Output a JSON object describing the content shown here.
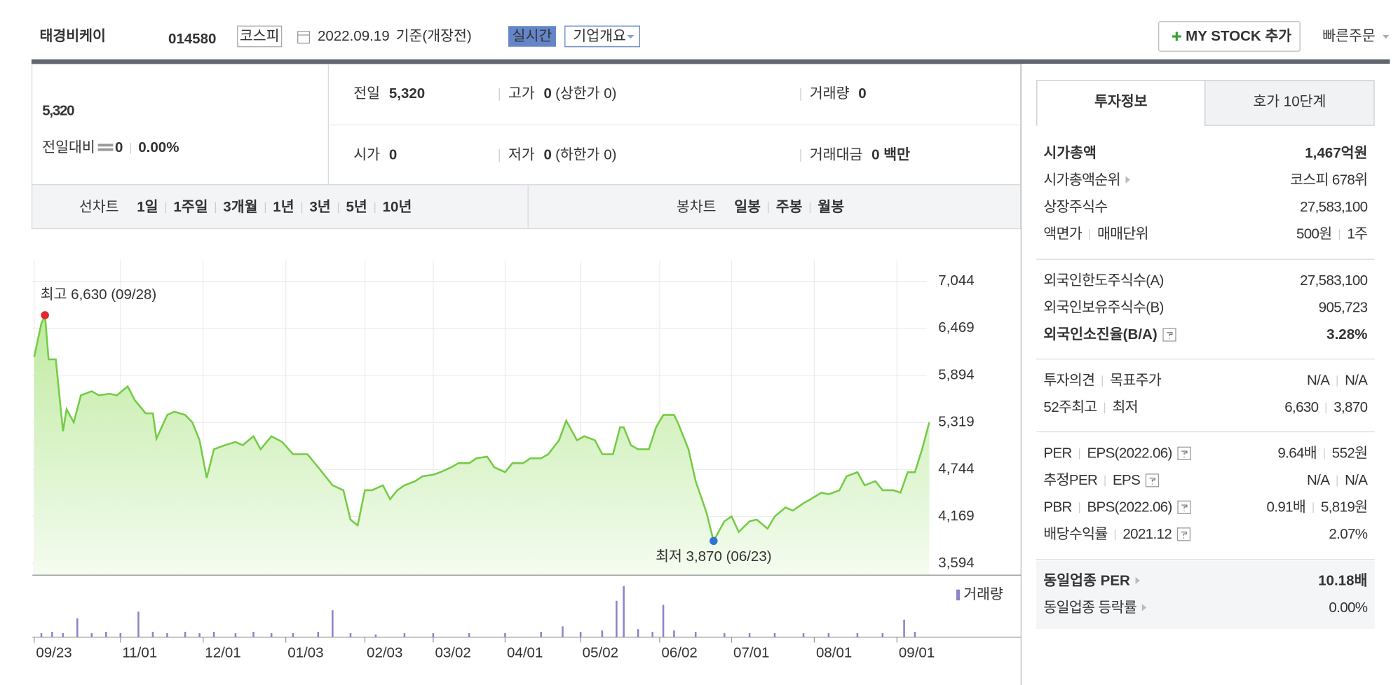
{
  "header": {
    "name": "태경비케이",
    "code": "014580",
    "market": "코스피",
    "date": "2022.09.19",
    "basis": "기준(개장전)",
    "realtime": "실시간",
    "overview": "기업개요",
    "mystock": "MY STOCK 추가",
    "quick_order": "빠른주문"
  },
  "price": {
    "current": "5,320",
    "change_label": "전일대비",
    "change": "0",
    "rate": "0.00%"
  },
  "summary": [
    {
      "label": "전일",
      "value": "5,320"
    },
    {
      "label": "고가",
      "value": "0",
      "note": "(상한가 0)"
    },
    {
      "label": "거래량",
      "value": "0"
    },
    {
      "label": "시가",
      "value": "0"
    },
    {
      "label": "저가",
      "value": "0",
      "note": "(하한가 0)"
    },
    {
      "label": "거래대금",
      "value": "0 백만"
    }
  ],
  "line_tabs": {
    "label": "선차트",
    "items": [
      "1일",
      "1주일",
      "3개월",
      "1년",
      "3년",
      "5년",
      "10년"
    ],
    "selected": 3
  },
  "candle_tabs": {
    "label": "봉차트",
    "items": [
      "일봉",
      "주봉",
      "월봉"
    ]
  },
  "chart_data": {
    "type": "line",
    "color": "#74cc45",
    "x": [
      0,
      2,
      3,
      4,
      6,
      8,
      9,
      11,
      13,
      16,
      18,
      21,
      23,
      26,
      28,
      31,
      33,
      34,
      37,
      39,
      42,
      44,
      46,
      48,
      50,
      53,
      56,
      58,
      61,
      63,
      66,
      69,
      72,
      76,
      79,
      83,
      86,
      88,
      90,
      92,
      94,
      97,
      99,
      101,
      103,
      106,
      108,
      111,
      113,
      116,
      118,
      121,
      123,
      126,
      128,
      131,
      133,
      136,
      138,
      141,
      143,
      146,
      148,
      151,
      153,
      156,
      158,
      161,
      163,
      164,
      166,
      168,
      171,
      173,
      175,
      178,
      179,
      182,
      184,
      187,
      189,
      192,
      194,
      196,
      199,
      201,
      204,
      206,
      209,
      211,
      214,
      216,
      219,
      221,
      224,
      226,
      229,
      231,
      234,
      236,
      239,
      241,
      243,
      245,
      247,
      249
    ],
    "values": [
      6120,
      6530,
      6630,
      6090,
      6090,
      5210,
      5480,
      5320,
      5650,
      5700,
      5650,
      5670,
      5650,
      5760,
      5590,
      5430,
      5430,
      5120,
      5410,
      5450,
      5410,
      5320,
      5100,
      4640,
      4990,
      5040,
      5080,
      5040,
      5150,
      4990,
      5150,
      5080,
      4930,
      4930,
      4770,
      4550,
      4490,
      4130,
      4060,
      4490,
      4490,
      4550,
      4380,
      4490,
      4550,
      4600,
      4660,
      4680,
      4710,
      4770,
      4820,
      4820,
      4880,
      4900,
      4770,
      4710,
      4820,
      4820,
      4880,
      4880,
      4930,
      5100,
      5340,
      5100,
      5150,
      5100,
      4930,
      4930,
      5260,
      5260,
      5040,
      4990,
      4990,
      5260,
      5410,
      5410,
      5320,
      4990,
      4600,
      4220,
      3870,
      4110,
      4170,
      3980,
      4110,
      4130,
      4020,
      4170,
      4280,
      4240,
      4330,
      4380,
      4460,
      4440,
      4490,
      4660,
      4710,
      4550,
      4600,
      4490,
      4490,
      4460,
      4710,
      4710,
      4990,
      5320
    ],
    "xlim": [
      0,
      249
    ],
    "ylim": [
      3594,
      7044
    ],
    "yticks": [
      {
        "value": 7044,
        "label": "7,044"
      },
      {
        "value": 6469,
        "label": "6,469"
      },
      {
        "value": 5894,
        "label": "5,894"
      },
      {
        "value": 5319,
        "label": "5,319"
      },
      {
        "value": 4744,
        "label": "4,744"
      },
      {
        "value": 4169,
        "label": "4,169"
      },
      {
        "value": 3594,
        "label": "3,594"
      }
    ],
    "xticks": [
      {
        "value": 0,
        "label": "09/23"
      },
      {
        "value": 24,
        "label": "11/01"
      },
      {
        "value": 47,
        "label": "12/01"
      },
      {
        "value": 70,
        "label": "01/03"
      },
      {
        "value": 92,
        "label": "02/03"
      },
      {
        "value": 111,
        "label": "03/02"
      },
      {
        "value": 131,
        "label": "04/01"
      },
      {
        "value": 152,
        "label": "05/02"
      },
      {
        "value": 174,
        "label": "06/02"
      },
      {
        "value": 194,
        "label": "07/01"
      },
      {
        "value": 217,
        "label": "08/01"
      },
      {
        "value": 240,
        "label": "09/01"
      }
    ],
    "grid": true,
    "annotations": [
      {
        "text": "최고 6,630 (09/28)",
        "x": 3,
        "y": 6630,
        "color": "#e3262f",
        "position": "above"
      },
      {
        "text": "최저 3,870 (06/23)",
        "x": 189,
        "y": 3870,
        "color": "#2f74d0",
        "position": "below"
      }
    ],
    "volume": {
      "name": "거래량",
      "color": "#8e84c9",
      "x": [
        2,
        5,
        8,
        12,
        16,
        20,
        24,
        29,
        33,
        37,
        42,
        46,
        50,
        56,
        61,
        66,
        72,
        79,
        83,
        88,
        95,
        103,
        111,
        121,
        131,
        141,
        147,
        152,
        158,
        162,
        164,
        168,
        172,
        175,
        178,
        184,
        192,
        199,
        206,
        214,
        221,
        229,
        236,
        242,
        245
      ],
      "values": [
        3,
        4,
        3,
        14,
        3,
        4,
        3,
        19,
        4,
        3,
        4,
        3,
        4,
        3,
        4,
        3,
        3,
        4,
        20,
        3,
        2,
        3,
        3,
        3,
        3,
        4,
        8,
        4,
        5,
        27,
        38,
        6,
        4,
        24,
        5,
        4,
        3,
        3,
        3,
        3,
        3,
        3,
        3,
        13,
        4
      ]
    }
  },
  "right_panel": {
    "tabs": [
      "투자정보",
      "호가 10단계"
    ],
    "sections": [
      [
        {
          "label": [
            "시가총액"
          ],
          "value": [
            "1,467억원"
          ],
          "bold": true
        },
        {
          "label": [
            "시가총액순위"
          ],
          "value": [
            "코스피 678위"
          ],
          "arrow": true
        },
        {
          "label": [
            "상장주식수"
          ],
          "value": [
            "27,583,100"
          ]
        },
        {
          "label": [
            "액면가",
            "매매단위"
          ],
          "value": [
            "500원",
            "1주"
          ]
        }
      ],
      [
        {
          "label": [
            "외국인한도주식수(A)"
          ],
          "value": [
            "27,583,100"
          ]
        },
        {
          "label": [
            "외국인보유주식수(B)"
          ],
          "value": [
            "905,723"
          ]
        },
        {
          "label": [
            "외국인소진율(B/A)"
          ],
          "value": [
            "3.28%"
          ],
          "bold": true,
          "help": true
        }
      ],
      [
        {
          "label": [
            "투자의견",
            "목표주가"
          ],
          "value": [
            "N/A",
            "N/A"
          ]
        },
        {
          "label": [
            "52주최고",
            "최저"
          ],
          "value": [
            "6,630",
            "3,870"
          ]
        }
      ],
      [
        {
          "label": [
            "PER",
            "EPS(2022.06)"
          ],
          "value": [
            "9.64배",
            "552원"
          ],
          "help": true
        },
        {
          "label": [
            "추정PER",
            "EPS"
          ],
          "value": [
            "N/A",
            "N/A"
          ],
          "help": true
        },
        {
          "label": [
            "PBR",
            "BPS(2022.06)"
          ],
          "value": [
            "0.91배",
            "5,819원"
          ],
          "help": true
        },
        {
          "label": [
            "배당수익률",
            "2021.12"
          ],
          "value": [
            "2.07%"
          ],
          "help": true
        }
      ],
      [
        {
          "label": [
            "동일업종 PER"
          ],
          "value": [
            "10.18배"
          ],
          "bold": true,
          "arrow": true
        },
        {
          "label": [
            "동일업종 등락률"
          ],
          "value": [
            "0.00%"
          ],
          "arrow": true
        }
      ]
    ]
  }
}
